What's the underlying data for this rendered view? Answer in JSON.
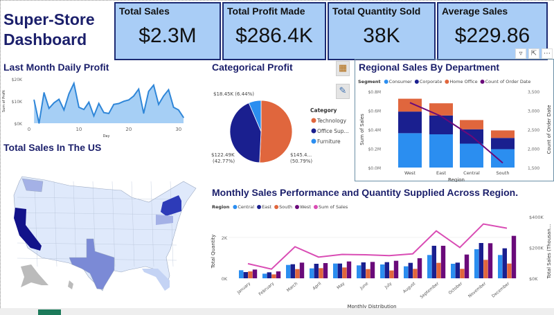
{
  "title": "Super-Store Dashboard",
  "kpis": [
    {
      "label": "Total Sales",
      "value": "$2.3M"
    },
    {
      "label": "Total Profit Made",
      "value": "$286.4K"
    },
    {
      "label": "Total Quantity Sold",
      "value": "38K"
    },
    {
      "label": "Average Sales",
      "value": "$229.86"
    }
  ],
  "header_icons": [
    "filter-icon",
    "focus-mode-icon",
    "more-options-icon"
  ],
  "map": {
    "title": "Total Sales In The US",
    "colors": {
      "high": "#12128a",
      "mid": "#7b8ad6",
      "low": "#dfe9fb",
      "unknown": "#bbbbbb"
    }
  },
  "chart_data": [
    {
      "type": "area",
      "title": "Last Month Daily Profit",
      "xlabel": "Day",
      "ylabel": "Sum of Profit",
      "xlim": [
        0,
        31
      ],
      "ylim": [
        0,
        20000
      ],
      "xticks": [
        "0",
        "10",
        "20",
        "30"
      ],
      "yticks": [
        "$0K",
        "$10K",
        "$20K"
      ],
      "color": "#2f86d8",
      "x": [
        1,
        2,
        3,
        4,
        5,
        6,
        7,
        8,
        9,
        10,
        11,
        12,
        13,
        14,
        15,
        16,
        17,
        18,
        19,
        20,
        21,
        22,
        23,
        24,
        25,
        26,
        27,
        28,
        29,
        30,
        31
      ],
      "y": [
        10500,
        0,
        13800,
        6700,
        9200,
        10800,
        6000,
        13300,
        18000,
        7200,
        6200,
        9500,
        3300,
        8900,
        4800,
        4400,
        8500,
        8900,
        9900,
        10500,
        12300,
        15400,
        4500,
        14400,
        17200,
        8500,
        12300,
        15100,
        7200,
        6000,
        2600
      ]
    },
    {
      "type": "pie",
      "title": "Categorical Profit",
      "legend_title": "Category",
      "slices": [
        {
          "name": "Technology",
          "legend": "Technology",
          "value": 50.79,
          "label": "$145.4...",
          "pct": "(50.79%)",
          "color": "#e0663d"
        },
        {
          "name": "Office Supplies",
          "legend": "Office Sup...",
          "value": 42.77,
          "label": "$122.49K",
          "pct": "(42.77%)",
          "color": "#1a1f8f"
        },
        {
          "name": "Furniture",
          "legend": "Furniture",
          "value": 6.44,
          "label": "$18.45K (6.44%)",
          "pct": "",
          "color": "#2b8ef0"
        }
      ]
    },
    {
      "type": "bar",
      "stacked": true,
      "title": "Regional Sales By Department",
      "legend_title": "Segment",
      "xlabel": "Region",
      "ylabel": "Sum of Sales",
      "y2label": "Count of Order Date",
      "categories": [
        "West",
        "East",
        "Central",
        "South"
      ],
      "ylim": [
        0,
        0.8
      ],
      "yticks": [
        "$0.0M",
        "$0.2M",
        "$0.4M",
        "$0.6M",
        "$0.8M"
      ],
      "y2lim": [
        1500,
        3500
      ],
      "y2ticks": [
        "1,500",
        "2,000",
        "2,500",
        "3,000",
        "3,500"
      ],
      "series": [
        {
          "name": "Consumer",
          "color": "#2b8ef0",
          "values": [
            0.361,
            0.349,
            0.251,
            0.193
          ]
        },
        {
          "name": "Corporate",
          "color": "#1a1f8f",
          "values": [
            0.227,
            0.198,
            0.151,
            0.118
          ]
        },
        {
          "name": "Home Office",
          "color": "#e0663d",
          "values": [
            0.135,
            0.128,
            0.097,
            0.079
          ]
        }
      ],
      "line": {
        "name": "Count of Order Date",
        "color": "#6a0a7a",
        "values": [
          3203,
          2848,
          2323,
          1620
        ]
      }
    },
    {
      "type": "bar",
      "title": "Monthly Sales Performance and Quantity Supplied Across Region.",
      "legend_title": "Region",
      "xlabel": "Monthly Distribution",
      "ylabel": "Total Quantity",
      "y2label": "Total Sales (Thousan...",
      "categories": [
        "January",
        "February",
        "March",
        "April",
        "May",
        "June",
        "July",
        "August",
        "September",
        "October",
        "November",
        "December"
      ],
      "ylim": [
        0,
        3000
      ],
      "yticks": [
        "0K",
        "2K"
      ],
      "y2lim": [
        0,
        400000
      ],
      "y2ticks": [
        "$0K",
        "$200K",
        "$400K"
      ],
      "series": [
        {
          "name": "Central",
          "color": "#2b8ef0",
          "values": [
            395,
            226,
            655,
            486,
            723,
            633,
            678,
            588,
            1141,
            712,
            1424,
            1141
          ]
        },
        {
          "name": "East",
          "color": "#1a1f8f",
          "values": [
            305,
            294,
            689,
            712,
            723,
            780,
            791,
            757,
            1593,
            768,
            1729,
            1469
          ]
        },
        {
          "name": "South",
          "color": "#e0663d",
          "values": [
            339,
            192,
            452,
            497,
            531,
            452,
            384,
            463,
            757,
            463,
            904,
            723
          ]
        },
        {
          "name": "West",
          "color": "#6a0a7a",
          "values": [
            429,
            339,
            768,
            746,
            825,
            802,
            859,
            983,
            1593,
            1164,
            1718,
            2079
          ]
        }
      ],
      "line": {
        "name": "Sum of Sales",
        "color": "#d94cb4",
        "values": [
          94900,
          59800,
          205000,
          137800,
          155000,
          152700,
          147200,
          159000,
          307600,
          200300,
          352500,
          325300
        ]
      }
    }
  ]
}
